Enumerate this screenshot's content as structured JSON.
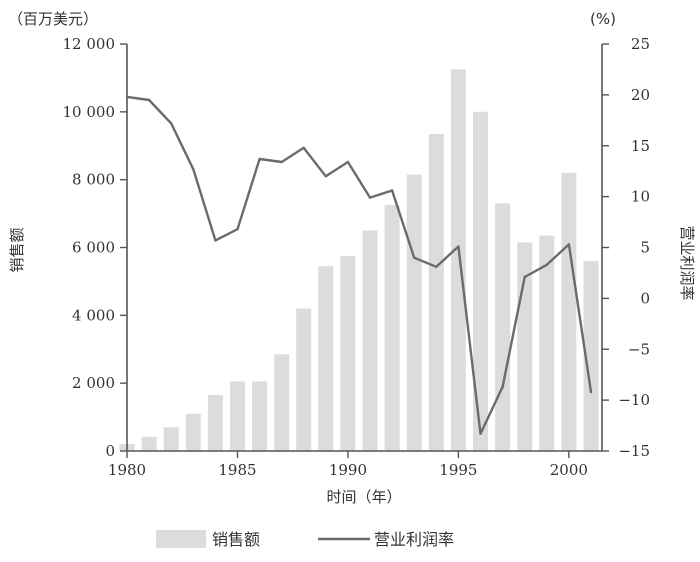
{
  "chart_data": {
    "type": "bar",
    "x_label": "时间（年）",
    "left_axis": {
      "label": "销售额",
      "unit": "（百万美元）",
      "ylim": [
        0,
        12000
      ],
      "ticks": [
        0,
        2000,
        4000,
        6000,
        8000,
        10000,
        12000
      ],
      "tick_labels": [
        "0",
        "2 000",
        "4 000",
        "6 000",
        "8 000",
        "10 000",
        "12 000"
      ]
    },
    "right_axis": {
      "label": "营业利润率",
      "unit": "(%)",
      "ylim": [
        -15,
        25
      ],
      "ticks": [
        -15,
        -10,
        -5,
        0,
        5,
        10,
        15,
        20,
        25
      ],
      "tick_labels": [
        "−15",
        "−10",
        "−5",
        "0",
        "5",
        "10",
        "15",
        "20",
        "25"
      ]
    },
    "x": {
      "min": 1980,
      "max": 2001.5,
      "ticks": [
        1980,
        1985,
        1990,
        1995,
        2000
      ],
      "tick_labels": [
        "1980",
        "1985",
        "1990",
        "1995",
        "2000"
      ]
    },
    "series": [
      {
        "name": "销售额",
        "type": "bar",
        "axis": "left",
        "color": "#dcdcdc",
        "years": [
          1980,
          1981,
          1982,
          1983,
          1984,
          1985,
          1986,
          1987,
          1988,
          1989,
          1990,
          1991,
          1992,
          1993,
          1994,
          1995,
          1996,
          1997,
          1998,
          1999,
          2000,
          2001
        ],
        "values": [
          200,
          420,
          700,
          1100,
          1650,
          2050,
          2050,
          2850,
          4200,
          5450,
          5750,
          6500,
          7250,
          8150,
          9350,
          11250,
          10000,
          7300,
          6150,
          6350,
          8200,
          5600
        ]
      },
      {
        "name": "营业利润率",
        "type": "line",
        "axis": "right",
        "color": "#6b6b6b",
        "years": [
          1980,
          1981,
          1982,
          1983,
          1984,
          1985,
          1986,
          1987,
          1988,
          1989,
          1990,
          1991,
          1992,
          1993,
          1994,
          1995,
          1996,
          1997,
          1998,
          1999,
          2000,
          2001
        ],
        "values": [
          19.8,
          19.5,
          17.2,
          12.7,
          5.7,
          6.8,
          13.7,
          13.4,
          14.8,
          12.0,
          13.4,
          9.9,
          10.6,
          4.0,
          3.1,
          5.1,
          -13.3,
          -8.7,
          2.1,
          3.3,
          5.3,
          -9.2
        ]
      }
    ],
    "legend": {
      "position": "bottom",
      "items": [
        {
          "label": "销售额",
          "kind": "bar"
        },
        {
          "label": "营业利润率",
          "kind": "line"
        }
      ]
    }
  }
}
